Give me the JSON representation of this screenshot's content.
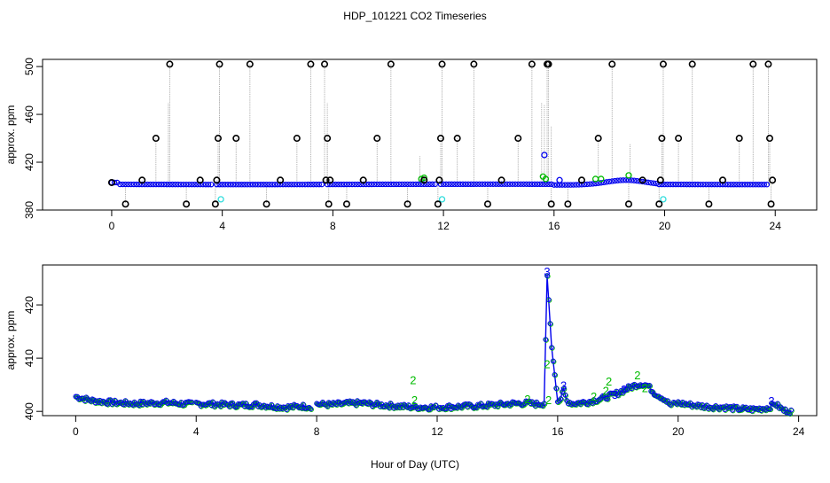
{
  "title": "HDP_101221  CO2 Timeseries",
  "xlabel_common": "Hour of Day (UTC)",
  "colors": {
    "black": "#000000",
    "blue": "#0000ee",
    "green": "#00bb00",
    "cyan": "#33dddd",
    "grey": "#aaaaaa"
  },
  "chart_data": [
    {
      "type": "scatter",
      "panel": "top",
      "title": "HDP_101221  CO2 Timeseries",
      "xlabel": "",
      "ylabel": "approx. ppm",
      "xlim": [
        -2.5,
        25.5
      ],
      "ylim": [
        380,
        506
      ],
      "xticks": [
        0,
        4,
        8,
        12,
        16,
        20,
        24
      ],
      "yticks": [
        380,
        420,
        460,
        500
      ],
      "series": [
        {
          "name": "flag 0 (blue)",
          "description": "baseline readings (≈400–405 ppm)",
          "x_range": [
            0,
            23.8
          ],
          "y_range": [
            399.5,
            405
          ]
        },
        {
          "name": "outliers (black)",
          "x": [
            0.0,
            0.5,
            1.1,
            1.6,
            2.1,
            2.7,
            3.2,
            3.75,
            3.8,
            3.85,
            3.9,
            4.5,
            5.0,
            5.6,
            6.1,
            6.7,
            7.2,
            7.7,
            7.75,
            7.8,
            7.85,
            7.9,
            8.5,
            9.1,
            9.6,
            10.1,
            10.7,
            11.3,
            11.8,
            11.85,
            11.9,
            11.95,
            12.5,
            13.1,
            13.6,
            14.1,
            14.7,
            15.2,
            15.75,
            15.8,
            15.9,
            16.5,
            17.0,
            17.6,
            18.1,
            18.7,
            19.2,
            19.8,
            19.85,
            19.9,
            19.95,
            20.5,
            21.0,
            21.6,
            22.1,
            22.7,
            23.2,
            23.75,
            23.8,
            23.85,
            23.9
          ],
          "y": [
            403,
            385,
            405,
            440,
            502,
            385,
            405,
            385,
            405,
            440,
            502,
            440,
            502,
            385,
            405,
            440,
            502,
            502,
            405,
            440,
            385,
            405,
            385,
            405,
            440,
            502,
            385,
            405,
            385,
            405,
            440,
            502,
            440,
            502,
            385,
            405,
            440,
            502,
            502,
            502,
            385,
            385,
            405,
            440,
            502,
            385,
            405,
            385,
            405,
            440,
            502,
            440,
            502,
            385,
            405,
            440,
            502,
            502,
            440,
            385,
            405
          ]
        },
        {
          "name": "flag 2 (green)",
          "x": [
            11.2,
            11.3,
            15.6,
            15.7,
            17.5,
            17.7,
            18.7
          ],
          "y": [
            406,
            407,
            408,
            406,
            406,
            406,
            409
          ]
        },
        {
          "name": "flag 3 (blue)",
          "x": [
            15.65,
            16.2
          ],
          "y": [
            426,
            405
          ]
        },
        {
          "name": "cyan",
          "x": [
            3.95,
            11.95,
            19.95
          ],
          "y": [
            389,
            389,
            389
          ]
        }
      ]
    },
    {
      "type": "line",
      "panel": "bottom",
      "xlabel": "Hour of Day (UTC)",
      "ylabel": "approx. ppm",
      "xlim": [
        -1.1,
        24.6
      ],
      "ylim": [
        399.2,
        427.5
      ],
      "xticks": [
        0,
        4,
        8,
        12,
        16,
        20,
        24
      ],
      "yticks": [
        400,
        410,
        420
      ],
      "series": [
        {
          "name": "filtered CO2 (blue line + open circles)",
          "x": [
            0,
            0.5,
            1,
            1.5,
            2,
            2.5,
            3,
            3.5,
            3.8,
            4.0,
            4.5,
            5,
            5.5,
            6,
            6.5,
            7,
            7.5,
            7.8,
            8.0,
            8.5,
            9,
            9.5,
            10,
            10.5,
            11,
            11.5,
            12,
            12.5,
            13,
            13.5,
            14,
            14.5,
            15,
            15.3,
            15.55,
            15.65,
            15.8,
            16.0,
            16.1,
            16.2,
            16.3,
            16.5,
            17,
            17.5,
            18,
            18.3,
            18.6,
            18.8,
            19.0,
            19.2,
            19.5,
            19.75,
            20.0,
            20.5,
            21,
            21.5,
            22,
            22.5,
            23,
            23.2,
            23.5,
            23.8
          ],
          "y": [
            402.8,
            402.1,
            401.8,
            401.6,
            401.5,
            401.6,
            401.7,
            401.5,
            401.4,
            401.5,
            401.4,
            401.3,
            401.2,
            401.3,
            401.0,
            400.8,
            401.0,
            400.9,
            401.4,
            401.3,
            401.5,
            401.6,
            401.3,
            401.1,
            400.9,
            400.8,
            400.8,
            400.9,
            401.0,
            401.1,
            401.3,
            401.5,
            401.6,
            401.4,
            401.5,
            425.5,
            412.0,
            401.8,
            402.5,
            404.0,
            402.0,
            401.5,
            401.8,
            402.5,
            403.5,
            404.3,
            405.0,
            405.2,
            404.8,
            403.5,
            402.5,
            401.2,
            401.6,
            401.2,
            400.9,
            400.8,
            400.5,
            400.4,
            400.7,
            401.5,
            400.2,
            400.0
          ]
        },
        {
          "name": "flag 2 markers (green '2')",
          "x": [
            11.2,
            11.25,
            15.0,
            15.65,
            15.7,
            17.2,
            17.6,
            17.7,
            18.65,
            18.9
          ],
          "y": [
            405.8,
            402.0,
            402.2,
            408.8,
            402.0,
            402.7,
            403.8,
            405.5,
            406.7,
            404.3
          ]
        },
        {
          "name": "flag 3 markers (blue '3')",
          "x": [
            15.65,
            16.2,
            17.9,
            18.2,
            23.1
          ],
          "y": [
            426.2,
            404.8,
            403.0,
            404.0,
            401.9
          ]
        }
      ],
      "text_labels": {
        "flag2": "2",
        "flag3": "3"
      }
    }
  ]
}
